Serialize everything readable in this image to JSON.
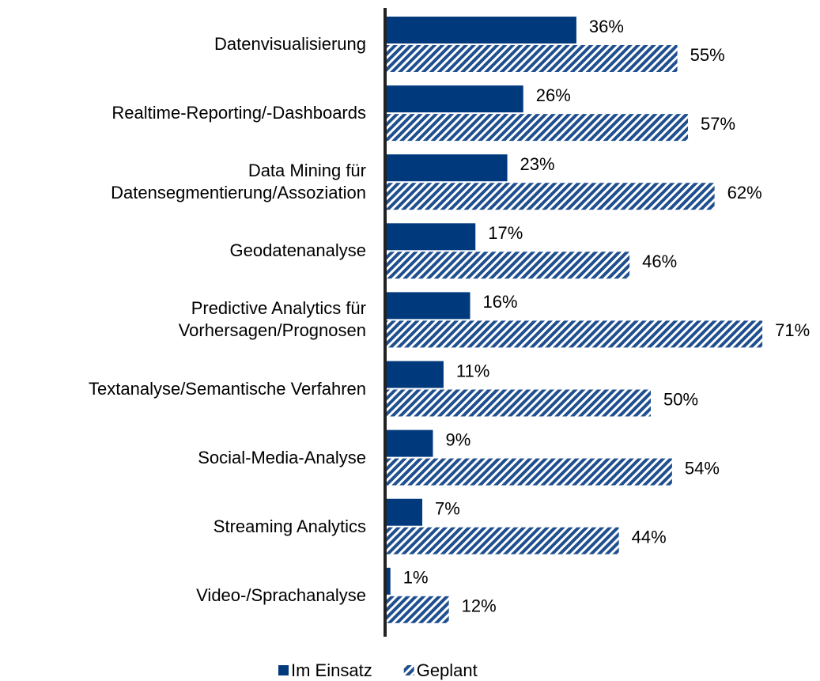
{
  "chart_data": {
    "type": "bar",
    "orientation": "horizontal",
    "categories": [
      "Datenvisualisierung",
      "Realtime-Reporting/-Dashboards",
      "Data Mining für\nDatensegmentierung/Assoziation",
      "Geodatenanalyse",
      "Predictive Analytics für\nVorhersagen/Prognosen",
      "Textanalyse/Semantische Verfahren",
      "Social-Media-Analyse",
      "Streaming Analytics",
      "Video-/Sprachanalyse"
    ],
    "series": [
      {
        "name": "Im Einsatz",
        "color": "#003a7d",
        "values": [
          36,
          26,
          23,
          17,
          16,
          11,
          9,
          7,
          1
        ],
        "value_labels": [
          "36%",
          "26%",
          "23%",
          "17%",
          "16%",
          "11%",
          "9%",
          "7%",
          "1%"
        ]
      },
      {
        "name": "Geplant",
        "color": "#1f4f8f",
        "pattern": "hatch",
        "values": [
          55,
          57,
          62,
          46,
          71,
          50,
          54,
          44,
          12
        ],
        "value_labels": [
          "55%",
          "57%",
          "62%",
          "46%",
          "71%",
          "50%",
          "54%",
          "44%",
          "12%"
        ]
      }
    ],
    "legend": "bottom"
  }
}
